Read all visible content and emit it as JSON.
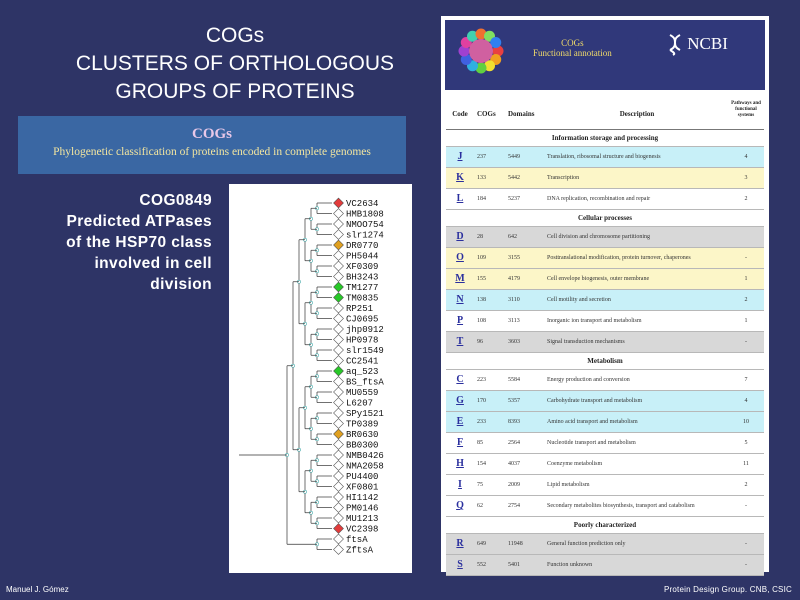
{
  "slide": {
    "title_lines": [
      "COGs",
      "CLUSTERS OF ORTHOLOGOUS",
      "GROUPS OF PROTEINS"
    ],
    "banner_title": "COGs",
    "banner_subtitle": "Phylogenetic classification of proteins encoded in complete genomes",
    "cog_lines": [
      "COG0849",
      "Predicted ATPases",
      "of the HSP70 class",
      "involved in cell",
      "division"
    ],
    "footer_left": "Manuel J. Gómez",
    "footer_right": "Protein Design Group. CNB, CSIC"
  },
  "tree": {
    "leaves": [
      {
        "label": "VC2634",
        "color": "#e23b3b"
      },
      {
        "label": "HMB1808",
        "color": "#ffffff"
      },
      {
        "label": "NMOO754",
        "color": "#ffffff"
      },
      {
        "label": "slr1274",
        "color": "#ffffff"
      },
      {
        "label": "DR0770",
        "color": "#e0a020"
      },
      {
        "label": "PH5044",
        "color": "#ffffff"
      },
      {
        "label": "XF0309",
        "color": "#ffffff"
      },
      {
        "label": "BH3243",
        "color": "#ffffff"
      },
      {
        "label": "TM1277",
        "color": "#28c828"
      },
      {
        "label": "TM0835",
        "color": "#28c828"
      },
      {
        "label": "RP251",
        "color": "#ffffff"
      },
      {
        "label": "CJ0695",
        "color": "#ffffff"
      },
      {
        "label": "jhp0912",
        "color": "#ffffff"
      },
      {
        "label": "HP0978",
        "color": "#ffffff"
      },
      {
        "label": "slr1549",
        "color": "#ffffff"
      },
      {
        "label": "CC2541",
        "color": "#ffffff"
      },
      {
        "label": "aq_523",
        "color": "#28c828"
      },
      {
        "label": "BS_ftsA",
        "color": "#ffffff"
      },
      {
        "label": "MU0559",
        "color": "#ffffff"
      },
      {
        "label": "L6207",
        "color": "#ffffff"
      },
      {
        "label": "SPy1521",
        "color": "#ffffff"
      },
      {
        "label": "TP0389",
        "color": "#ffffff"
      },
      {
        "label": "BR0630",
        "color": "#e0a020"
      },
      {
        "label": "BB0300",
        "color": "#ffffff"
      },
      {
        "label": "NMB0426",
        "color": "#ffffff"
      },
      {
        "label": "NMA2058",
        "color": "#ffffff"
      },
      {
        "label": "PU4400",
        "color": "#ffffff"
      },
      {
        "label": "XF0801",
        "color": "#ffffff"
      },
      {
        "label": "HI1142",
        "color": "#ffffff"
      },
      {
        "label": "PM0146",
        "color": "#ffffff"
      },
      {
        "label": "MU1213",
        "color": "#ffffff"
      },
      {
        "label": "VC2398",
        "color": "#e23b3b"
      },
      {
        "label": "ftsA",
        "color": "#ffffff"
      },
      {
        "label": "ZftsA",
        "color": "#ffffff"
      }
    ]
  },
  "table": {
    "header_title": "COGs",
    "header_subtitle": "Functional annotation",
    "ncbi_label": "NCBI",
    "columns": [
      "Code",
      "COGs",
      "Domains",
      "Description",
      "Pathways and functional systems"
    ],
    "sections": [
      {
        "heading": "Information storage and processing",
        "rows": [
          {
            "code": "J",
            "cogs": "237",
            "domains": "5449",
            "desc": "Translation, ribosomal structure and biogenesis",
            "pathways": "4",
            "bg": "#c8f0f8"
          },
          {
            "code": "K",
            "cogs": "133",
            "domains": "5442",
            "desc": "Transcription",
            "pathways": "3",
            "bg": "#fcf6c8"
          },
          {
            "code": "L",
            "cogs": "184",
            "domains": "5237",
            "desc": "DNA replication, recombination and repair",
            "pathways": "2",
            "bg": "#ffffff"
          }
        ]
      },
      {
        "heading": "Cellular processes",
        "rows": [
          {
            "code": "D",
            "cogs": "28",
            "domains": "642",
            "desc": "Cell division and chromosome partitioning",
            "pathways": "",
            "bg": "#d8d8d8"
          },
          {
            "code": "O",
            "cogs": "109",
            "domains": "3155",
            "desc": "Posttranslational modification, protein turnover, chaperones",
            "pathways": "-",
            "bg": "#fcf6c8"
          },
          {
            "code": "M",
            "cogs": "155",
            "domains": "4179",
            "desc": "Cell envelope biogenesis, outer membrane",
            "pathways": "1",
            "bg": "#fcf6c8"
          },
          {
            "code": "N",
            "cogs": "138",
            "domains": "3110",
            "desc": "Cell motility and secretion",
            "pathways": "2",
            "bg": "#c8f0f8"
          },
          {
            "code": "P",
            "cogs": "108",
            "domains": "3113",
            "desc": "Inorganic ion transport and metabolism",
            "pathways": "1",
            "bg": "#ffffff"
          },
          {
            "code": "T",
            "cogs": "96",
            "domains": "3603",
            "desc": "Signal transduction mechanisms",
            "pathways": "-",
            "bg": "#d8d8d8"
          }
        ]
      },
      {
        "heading": "Metabolism",
        "rows": [
          {
            "code": "C",
            "cogs": "223",
            "domains": "5584",
            "desc": "Energy production and conversion",
            "pathways": "7",
            "bg": "#ffffff"
          },
          {
            "code": "G",
            "cogs": "170",
            "domains": "5357",
            "desc": "Carbohydrate transport and metabolism",
            "pathways": "4",
            "bg": "#c8f0f8"
          },
          {
            "code": "E",
            "cogs": "233",
            "domains": "8393",
            "desc": "Amino acid transport and metabolism",
            "pathways": "10",
            "bg": "#c8f0f8"
          },
          {
            "code": "F",
            "cogs": "85",
            "domains": "2564",
            "desc": "Nucleotide transport and metabolism",
            "pathways": "5",
            "bg": "#ffffff"
          },
          {
            "code": "H",
            "cogs": "154",
            "domains": "4037",
            "desc": "Coenzyme metabolism",
            "pathways": "11",
            "bg": "#ffffff"
          },
          {
            "code": "I",
            "cogs": "75",
            "domains": "2009",
            "desc": "Lipid metabolism",
            "pathways": "2",
            "bg": "#ffffff"
          },
          {
            "code": "Q",
            "cogs": "62",
            "domains": "2754",
            "desc": "Secondary metabolites biosynthesis, transport and catabolism",
            "pathways": "-",
            "bg": "#ffffff"
          }
        ]
      },
      {
        "heading": "Poorly characterized",
        "rows": [
          {
            "code": "R",
            "cogs": "649",
            "domains": "11948",
            "desc": "General function prediction only",
            "pathways": "-",
            "bg": "#d8d8d8"
          },
          {
            "code": "S",
            "cogs": "552",
            "domains": "5401",
            "desc": "Function unknown",
            "pathways": "-",
            "bg": "#d8d8d8"
          }
        ]
      }
    ]
  }
}
